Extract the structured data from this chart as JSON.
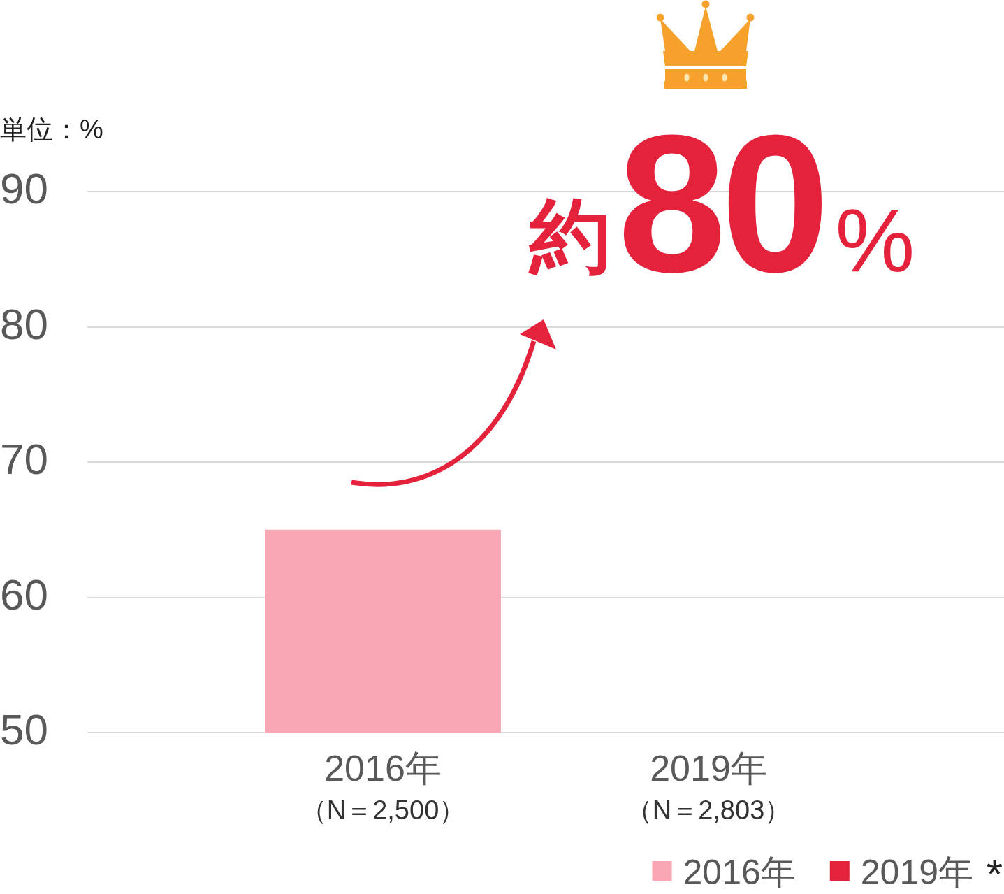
{
  "chart_data": {
    "type": "bar",
    "ylabel": "単位：%",
    "categories": [
      "2016年（N＝2,500）",
      "2019年（N＝2,803）"
    ],
    "series": [
      {
        "name": "2016年",
        "color": "#f9a6b5",
        "values": [
          65,
          null
        ]
      },
      {
        "name": "2019年",
        "color": "#e4223c",
        "values": [
          null,
          null
        ]
      }
    ],
    "ylim": [
      50,
      90
    ],
    "yticks": [
      50,
      60,
      70,
      80,
      90
    ],
    "grid": "y",
    "legend": "bottom right",
    "annotations": [
      "約80%",
      "*"
    ]
  }
}
